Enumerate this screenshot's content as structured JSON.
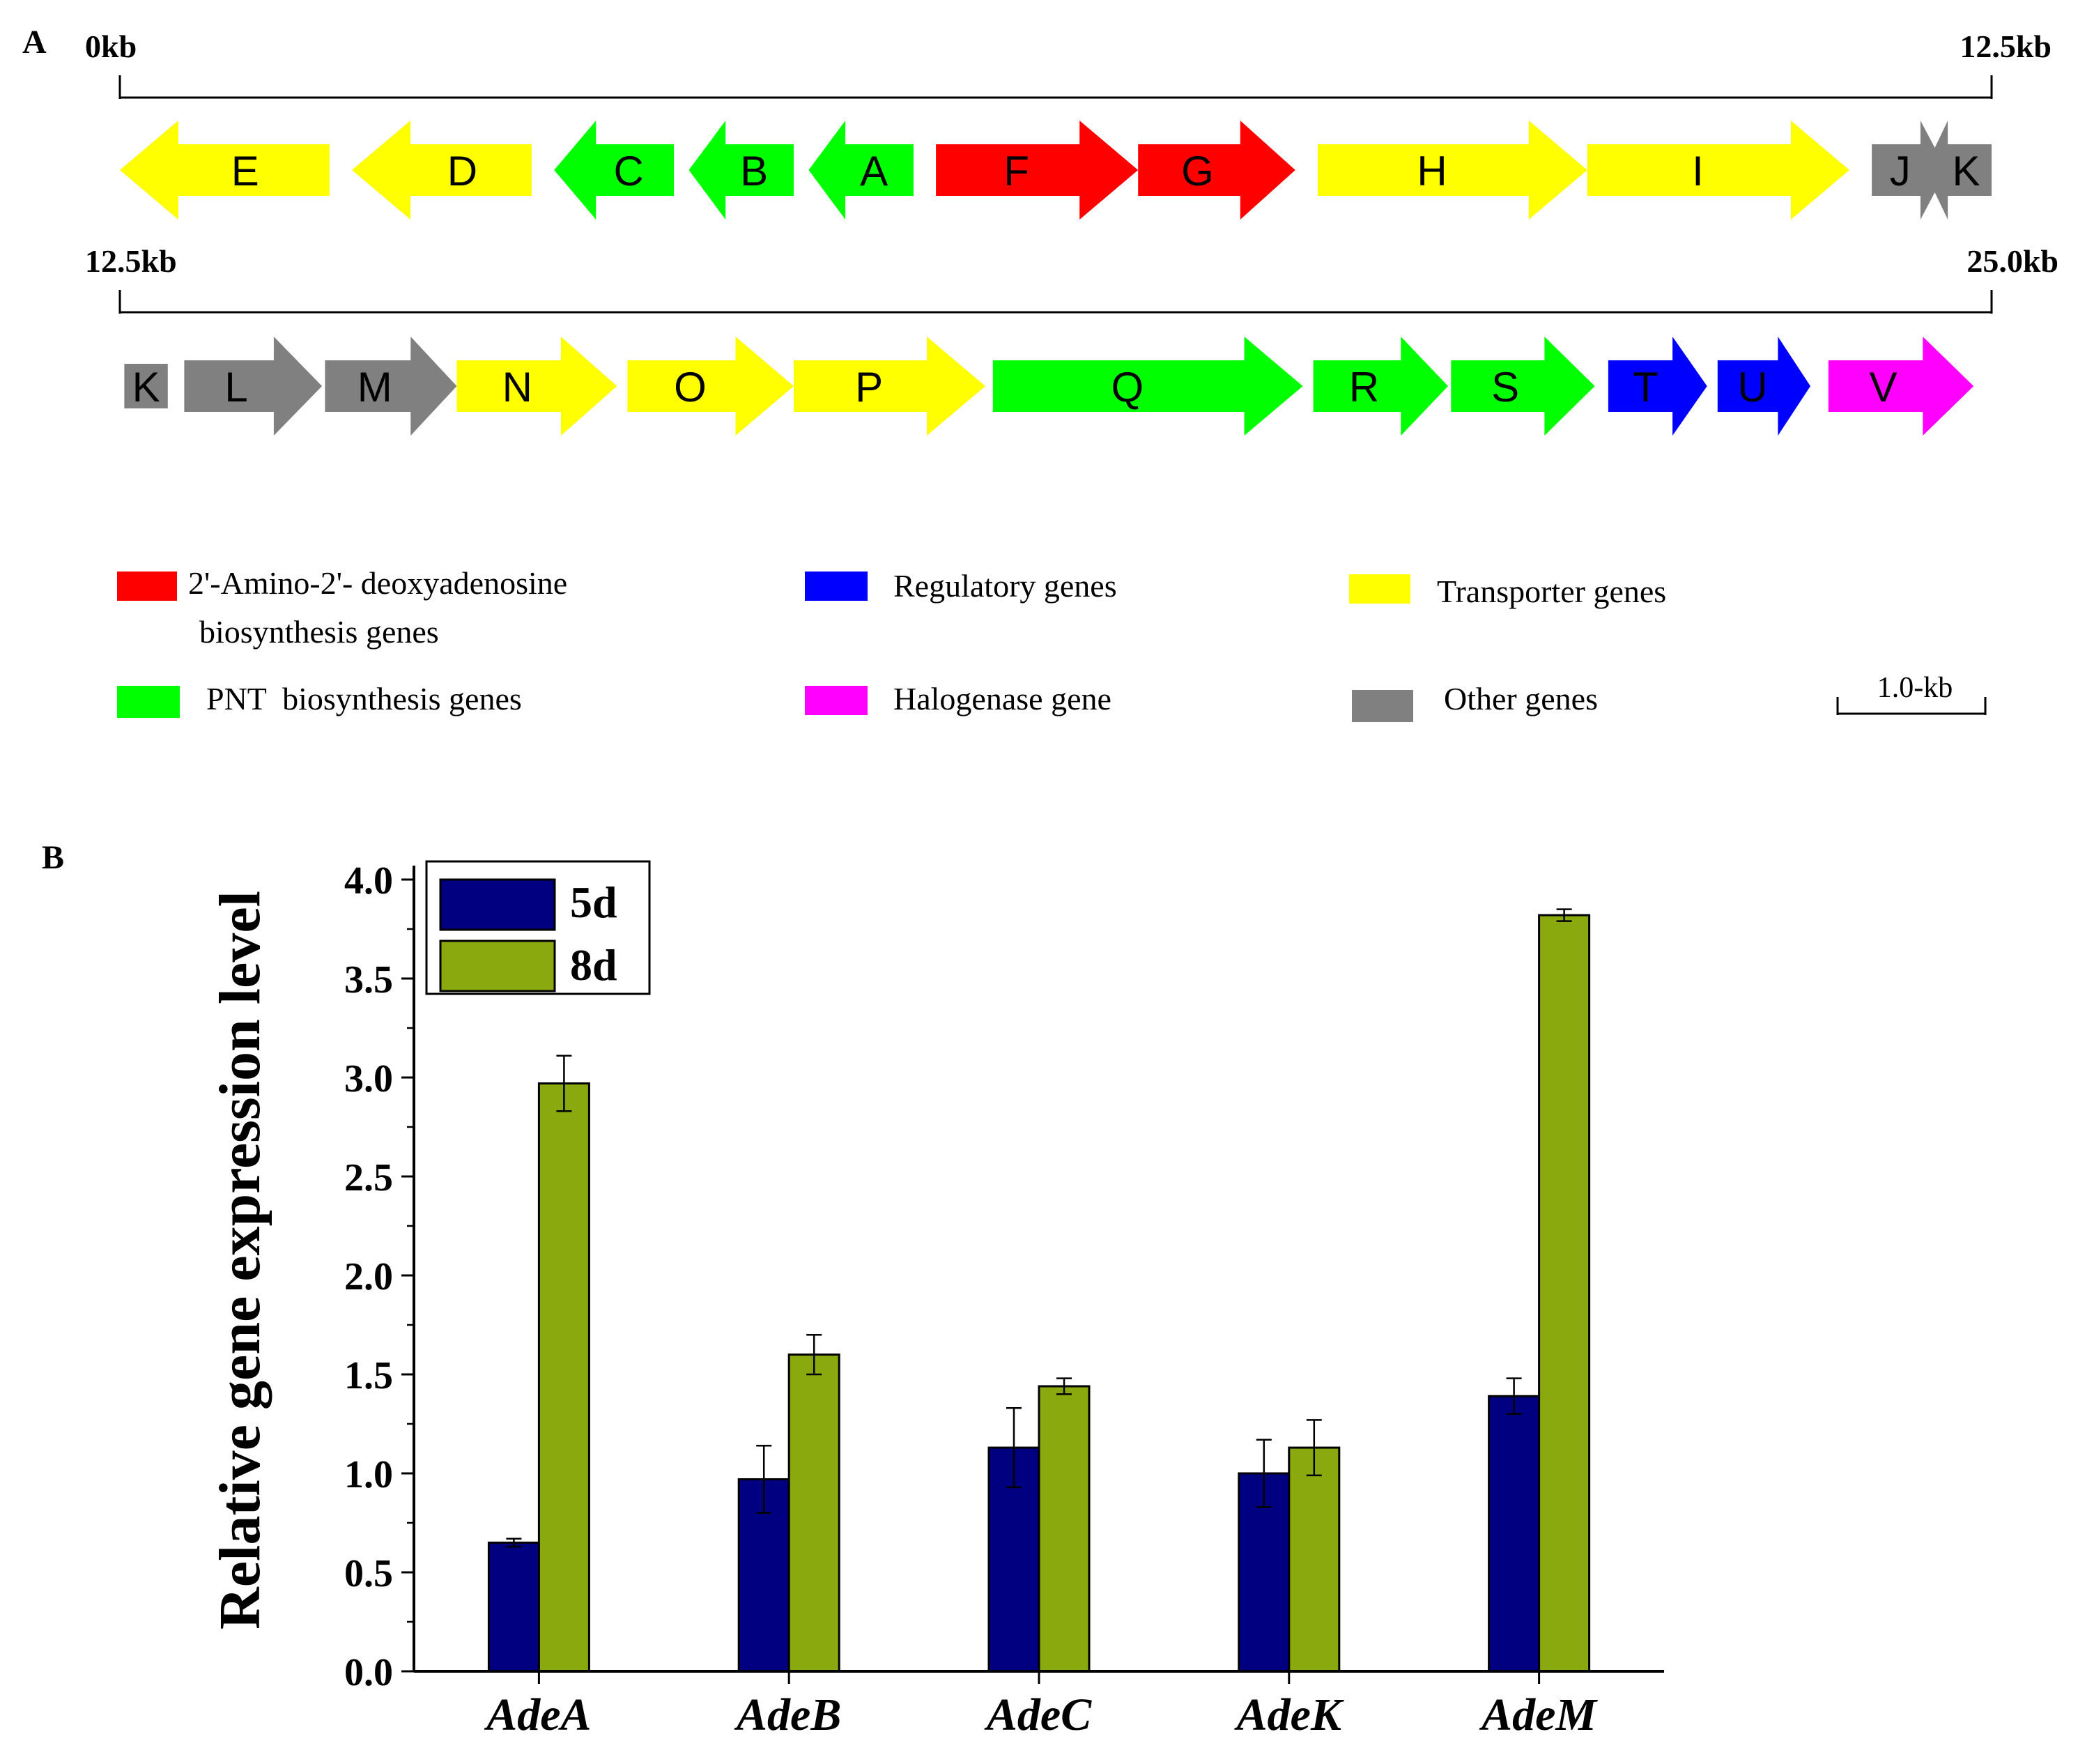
{
  "panel_a": {
    "label": "A",
    "row1": {
      "start_label": "0kb",
      "end_label": "12.5kb",
      "genes": [
        {
          "name": "E",
          "dir": "left",
          "category": "transporter",
          "start_kb": 0.0,
          "end_kb": 1.4
        },
        {
          "name": "D",
          "dir": "left",
          "category": "transporter",
          "start_kb": 1.55,
          "end_kb": 2.75
        },
        {
          "name": "C",
          "dir": "left",
          "category": "pnt",
          "start_kb": 2.9,
          "end_kb": 3.7
        },
        {
          "name": "B",
          "dir": "left",
          "category": "pnt",
          "start_kb": 3.8,
          "end_kb": 4.5
        },
        {
          "name": "A",
          "dir": "left",
          "category": "pnt",
          "start_kb": 4.6,
          "end_kb": 5.3
        },
        {
          "name": "F",
          "dir": "right",
          "category": "amino",
          "start_kb": 5.45,
          "end_kb": 6.8
        },
        {
          "name": "G",
          "dir": "right",
          "category": "amino",
          "start_kb": 6.8,
          "end_kb": 7.85
        },
        {
          "name": "H",
          "dir": "right",
          "category": "transporter",
          "start_kb": 8.0,
          "end_kb": 9.8
        },
        {
          "name": "I",
          "dir": "right",
          "category": "transporter",
          "start_kb": 9.8,
          "end_kb": 11.55
        },
        {
          "name": "J",
          "dir": "right",
          "category": "other",
          "start_kb": 11.7,
          "end_kb": 12.2
        },
        {
          "name": "K",
          "dir": "left",
          "category": "other",
          "start_kb": 12.05,
          "end_kb": 12.5
        }
      ]
    },
    "row2": {
      "start_label": "12.5kb",
      "end_label": "25.0kb",
      "genes": [
        {
          "name": "K",
          "dir": "none",
          "category": "other",
          "start_kb": 12.53,
          "end_kb": 12.82
        },
        {
          "name": "L",
          "dir": "right",
          "category": "other",
          "start_kb": 12.93,
          "end_kb": 13.85
        },
        {
          "name": "M",
          "dir": "right",
          "category": "other",
          "start_kb": 13.87,
          "end_kb": 14.75
        },
        {
          "name": "N",
          "dir": "right",
          "category": "transporter",
          "start_kb": 14.75,
          "end_kb": 15.82
        },
        {
          "name": "O",
          "dir": "right",
          "category": "transporter",
          "start_kb": 15.89,
          "end_kb": 17.0
        },
        {
          "name": "P",
          "dir": "right",
          "category": "transporter",
          "start_kb": 17.0,
          "end_kb": 18.28
        },
        {
          "name": "Q",
          "dir": "right",
          "category": "pnt",
          "start_kb": 18.33,
          "end_kb": 20.4
        },
        {
          "name": "R",
          "dir": "right",
          "category": "pnt",
          "start_kb": 20.47,
          "end_kb": 21.37
        },
        {
          "name": "S",
          "dir": "right",
          "category": "pnt",
          "start_kb": 21.39,
          "end_kb": 22.35
        },
        {
          "name": "T",
          "dir": "right",
          "category": "regulatory",
          "start_kb": 22.44,
          "end_kb": 23.1
        },
        {
          "name": "U",
          "dir": "right",
          "category": "regulatory",
          "start_kb": 23.17,
          "end_kb": 23.79
        },
        {
          "name": "V",
          "dir": "right",
          "category": "halogenase",
          "start_kb": 23.91,
          "end_kb": 24.88
        }
      ]
    },
    "colors": {
      "amino": "#ff0000",
      "pnt": "#00ff00",
      "regulatory": "#0000ff",
      "halogenase": "#ff00ff",
      "transporter": "#ffff00",
      "other": "#808080"
    },
    "legend": [
      {
        "category": "amino",
        "line1": "2'-Amino-2'- deoxyadenosine",
        "line2": "biosynthesis genes"
      },
      {
        "category": "regulatory",
        "line1": "Regulatory genes"
      },
      {
        "category": "transporter",
        "line1": "Transporter genes"
      },
      {
        "category": "pnt",
        "line1": "PNT  biosynthesis genes"
      },
      {
        "category": "halogenase",
        "line1": "Halogenase gene"
      },
      {
        "category": "other",
        "line1": "Other genes"
      }
    ],
    "scale_bar_label": "1.0-kb",
    "scale_bar_kb": 1.0
  },
  "panel_b": {
    "label": "B"
  },
  "chart_data": {
    "type": "bar",
    "categories": [
      "AdeA",
      "AdeB",
      "AdeC",
      "AdeK",
      "AdeM"
    ],
    "series": [
      {
        "name": "5d",
        "color": "#000080",
        "values": [
          0.65,
          0.97,
          1.13,
          1.0,
          1.39
        ],
        "errors": [
          0.02,
          0.17,
          0.2,
          0.17,
          0.09
        ]
      },
      {
        "name": "8d",
        "color": "#8aa90e",
        "values": [
          2.97,
          1.6,
          1.44,
          1.13,
          3.82
        ],
        "errors": [
          0.14,
          0.1,
          0.04,
          0.14,
          0.03
        ]
      }
    ],
    "title": "",
    "xlabel": "",
    "ylabel": "Relative gene expression level",
    "ylim": [
      0,
      4.0
    ],
    "yticks": [
      "0.0",
      "0.5",
      "1.0",
      "1.5",
      "2.0",
      "2.5",
      "3.0",
      "3.5",
      "4.0"
    ],
    "legend_position": "top-left",
    "grid": false
  }
}
